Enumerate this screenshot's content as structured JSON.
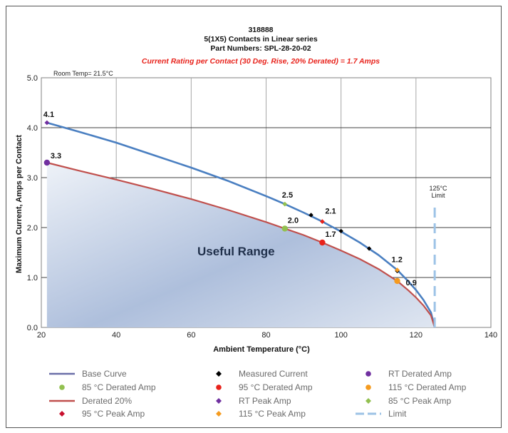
{
  "chart_data": {
    "type": "line",
    "title_lines": [
      "318888",
      "5(1X5) Contacts in Linear series",
      "Part Numbers: SPL-28-20-02"
    ],
    "subtitle": "Current Rating per Contact (30 Deg. Rise, 20% Derated)  = 1.7 Amps",
    "xlabel": "Ambient Temperature (°C)",
    "ylabel": "Maximum Current, Amps per Contact",
    "xlim": [
      20,
      140
    ],
    "ylim": [
      0,
      5
    ],
    "x_ticks": [
      "20",
      "40",
      "60",
      "80",
      "100",
      "120",
      "140"
    ],
    "y_ticks": [
      "0.0",
      "1.0",
      "2.0",
      "3.0",
      "4.0",
      "5.0"
    ],
    "grid": true,
    "room_temp_note": "Room Temp= 21.5°C",
    "limit_note": [
      "125°C",
      "Limit"
    ],
    "fill_label": "Useful Range",
    "colors": {
      "base": "#4a7fc1",
      "derated": "#c0504d",
      "limit": "#9dc3e6",
      "fill": "#b8c7df",
      "rt": "#7030a0",
      "c85": "#92c050",
      "c95": "#e8221b",
      "c115": "#f59b1f",
      "measured": "#000000"
    },
    "series": [
      {
        "name": "Base Curve",
        "x": [
          21.5,
          30,
          40,
          50,
          60,
          70,
          80,
          85,
          90,
          95,
          100,
          105,
          110,
          115,
          118,
          120,
          122,
          124,
          125
        ],
        "y": [
          4.1,
          3.92,
          3.7,
          3.45,
          3.2,
          2.93,
          2.63,
          2.47,
          2.3,
          2.12,
          1.92,
          1.7,
          1.45,
          1.15,
          0.92,
          0.75,
          0.55,
          0.3,
          0.0
        ]
      },
      {
        "name": "Derated 20%",
        "x": [
          21.5,
          30,
          40,
          50,
          60,
          70,
          80,
          85,
          90,
          95,
          100,
          105,
          110,
          115,
          118,
          120,
          122,
          124,
          125
        ],
        "y": [
          3.3,
          3.14,
          2.96,
          2.77,
          2.57,
          2.35,
          2.11,
          1.98,
          1.85,
          1.7,
          1.54,
          1.37,
          1.17,
          0.93,
          0.74,
          0.6,
          0.44,
          0.24,
          0.0
        ]
      },
      {
        "name": "Limit",
        "x": [
          125,
          125
        ],
        "y": [
          0,
          2.4
        ]
      }
    ],
    "measured_current": {
      "x": [
        92,
        100,
        107.5,
        115
      ],
      "y": [
        2.25,
        1.93,
        1.58,
        1.13
      ]
    },
    "points": [
      {
        "name": "RT Derated Amp",
        "x": 21.5,
        "y": 3.3,
        "label": "3.3"
      },
      {
        "name": "85 °C Derated Amp",
        "x": 85,
        "y": 1.98,
        "label": "2.0"
      },
      {
        "name": "95 °C Derated Amp",
        "x": 95,
        "y": 1.7,
        "label": "1.7"
      },
      {
        "name": "115 °C Derated Amp",
        "x": 115,
        "y": 0.93,
        "label": "0.9"
      },
      {
        "name": "RT Peak Amp",
        "x": 21.5,
        "y": 4.1,
        "label": "4.1"
      },
      {
        "name": "85 °C Peak Amp",
        "x": 85,
        "y": 2.47,
        "label": "2.5"
      },
      {
        "name": "95 °C Peak Amp",
        "x": 95,
        "y": 2.12,
        "label": "2.1"
      },
      {
        "name": "115 °C Peak Amp",
        "x": 115,
        "y": 1.15,
        "label": "1.2"
      }
    ],
    "legend": [
      {
        "label": "Base Curve",
        "kind": "line",
        "color": "#6b6fa8"
      },
      {
        "label": "Measured Current",
        "kind": "diamond",
        "color": "#000000"
      },
      {
        "label": "RT Derated Amp",
        "kind": "circle",
        "color": "#7030a0"
      },
      {
        "label": "85 °C Derated Amp",
        "kind": "circle",
        "color": "#92c050"
      },
      {
        "label": "95 °C Derated Amp",
        "kind": "circle",
        "color": "#e8221b"
      },
      {
        "label": "115 °C Derated Amp",
        "kind": "circle",
        "color": "#f59b1f"
      },
      {
        "label": "Derated 20%",
        "kind": "line",
        "color": "#c0504d"
      },
      {
        "label": "RT Peak Amp",
        "kind": "diamond",
        "color": "#7030a0"
      },
      {
        "label": "85 °C Peak Amp",
        "kind": "diamond",
        "color": "#92c050"
      },
      {
        "label": "95 °C Peak Amp",
        "kind": "diamond",
        "color": "#c8102e"
      },
      {
        "label": "115 °C Peak Amp",
        "kind": "diamond",
        "color": "#f59b1f"
      },
      {
        "label": "Limit",
        "kind": "dash",
        "color": "#9dc3e6"
      }
    ]
  }
}
